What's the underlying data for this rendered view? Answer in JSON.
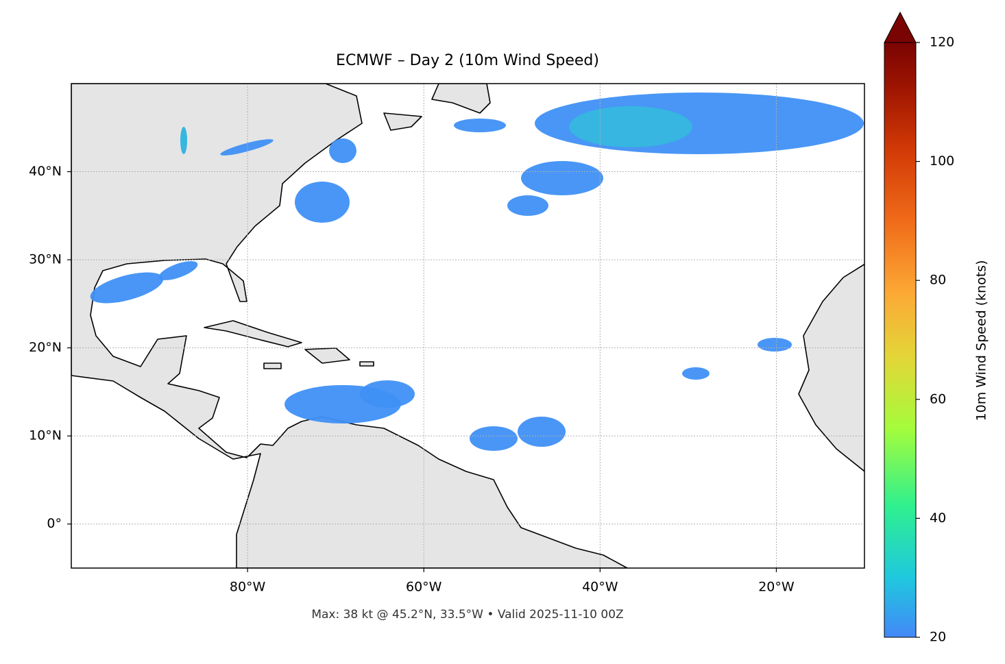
{
  "chart_data": {
    "type": "map",
    "title": "ECMWF – Day 2 (10m Wind Speed)",
    "caption": "Max: 38 kt @ 45.2°N, 33.5°W • Valid 2025-11-10 00Z",
    "xlim": [
      -100,
      -10
    ],
    "ylim": [
      -5,
      50
    ],
    "xticks": [
      {
        "value": -80,
        "label": "80°W"
      },
      {
        "value": -60,
        "label": "60°W"
      },
      {
        "value": -40,
        "label": "40°W"
      },
      {
        "value": -20,
        "label": "20°W"
      }
    ],
    "yticks": [
      {
        "value": 0,
        "label": "0°"
      },
      {
        "value": 10,
        "label": "10°N"
      },
      {
        "value": 20,
        "label": "20°N"
      },
      {
        "value": 30,
        "label": "30°N"
      },
      {
        "value": 40,
        "label": "40°N"
      }
    ],
    "grid": true,
    "colorbar": {
      "label": "10m Wind Speed (knots)",
      "lim": [
        20,
        120
      ],
      "ticks": [
        20,
        40,
        60,
        80,
        100,
        120
      ],
      "extend": "max"
    }
  }
}
